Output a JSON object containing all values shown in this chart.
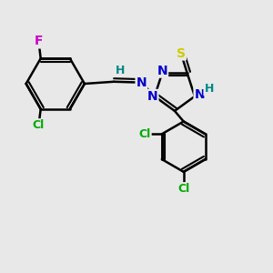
{
  "background_color": "#e8e8e8",
  "atom_colors": {
    "C": "#000000",
    "N": "#0000cc",
    "S": "#cccc00",
    "H": "#008888",
    "F": "#cc00cc",
    "Cl": "#00aa00"
  },
  "bond_color": "#000000",
  "bond_width": 1.8,
  "fig_width": 3.0,
  "fig_height": 3.0,
  "dpi": 100
}
